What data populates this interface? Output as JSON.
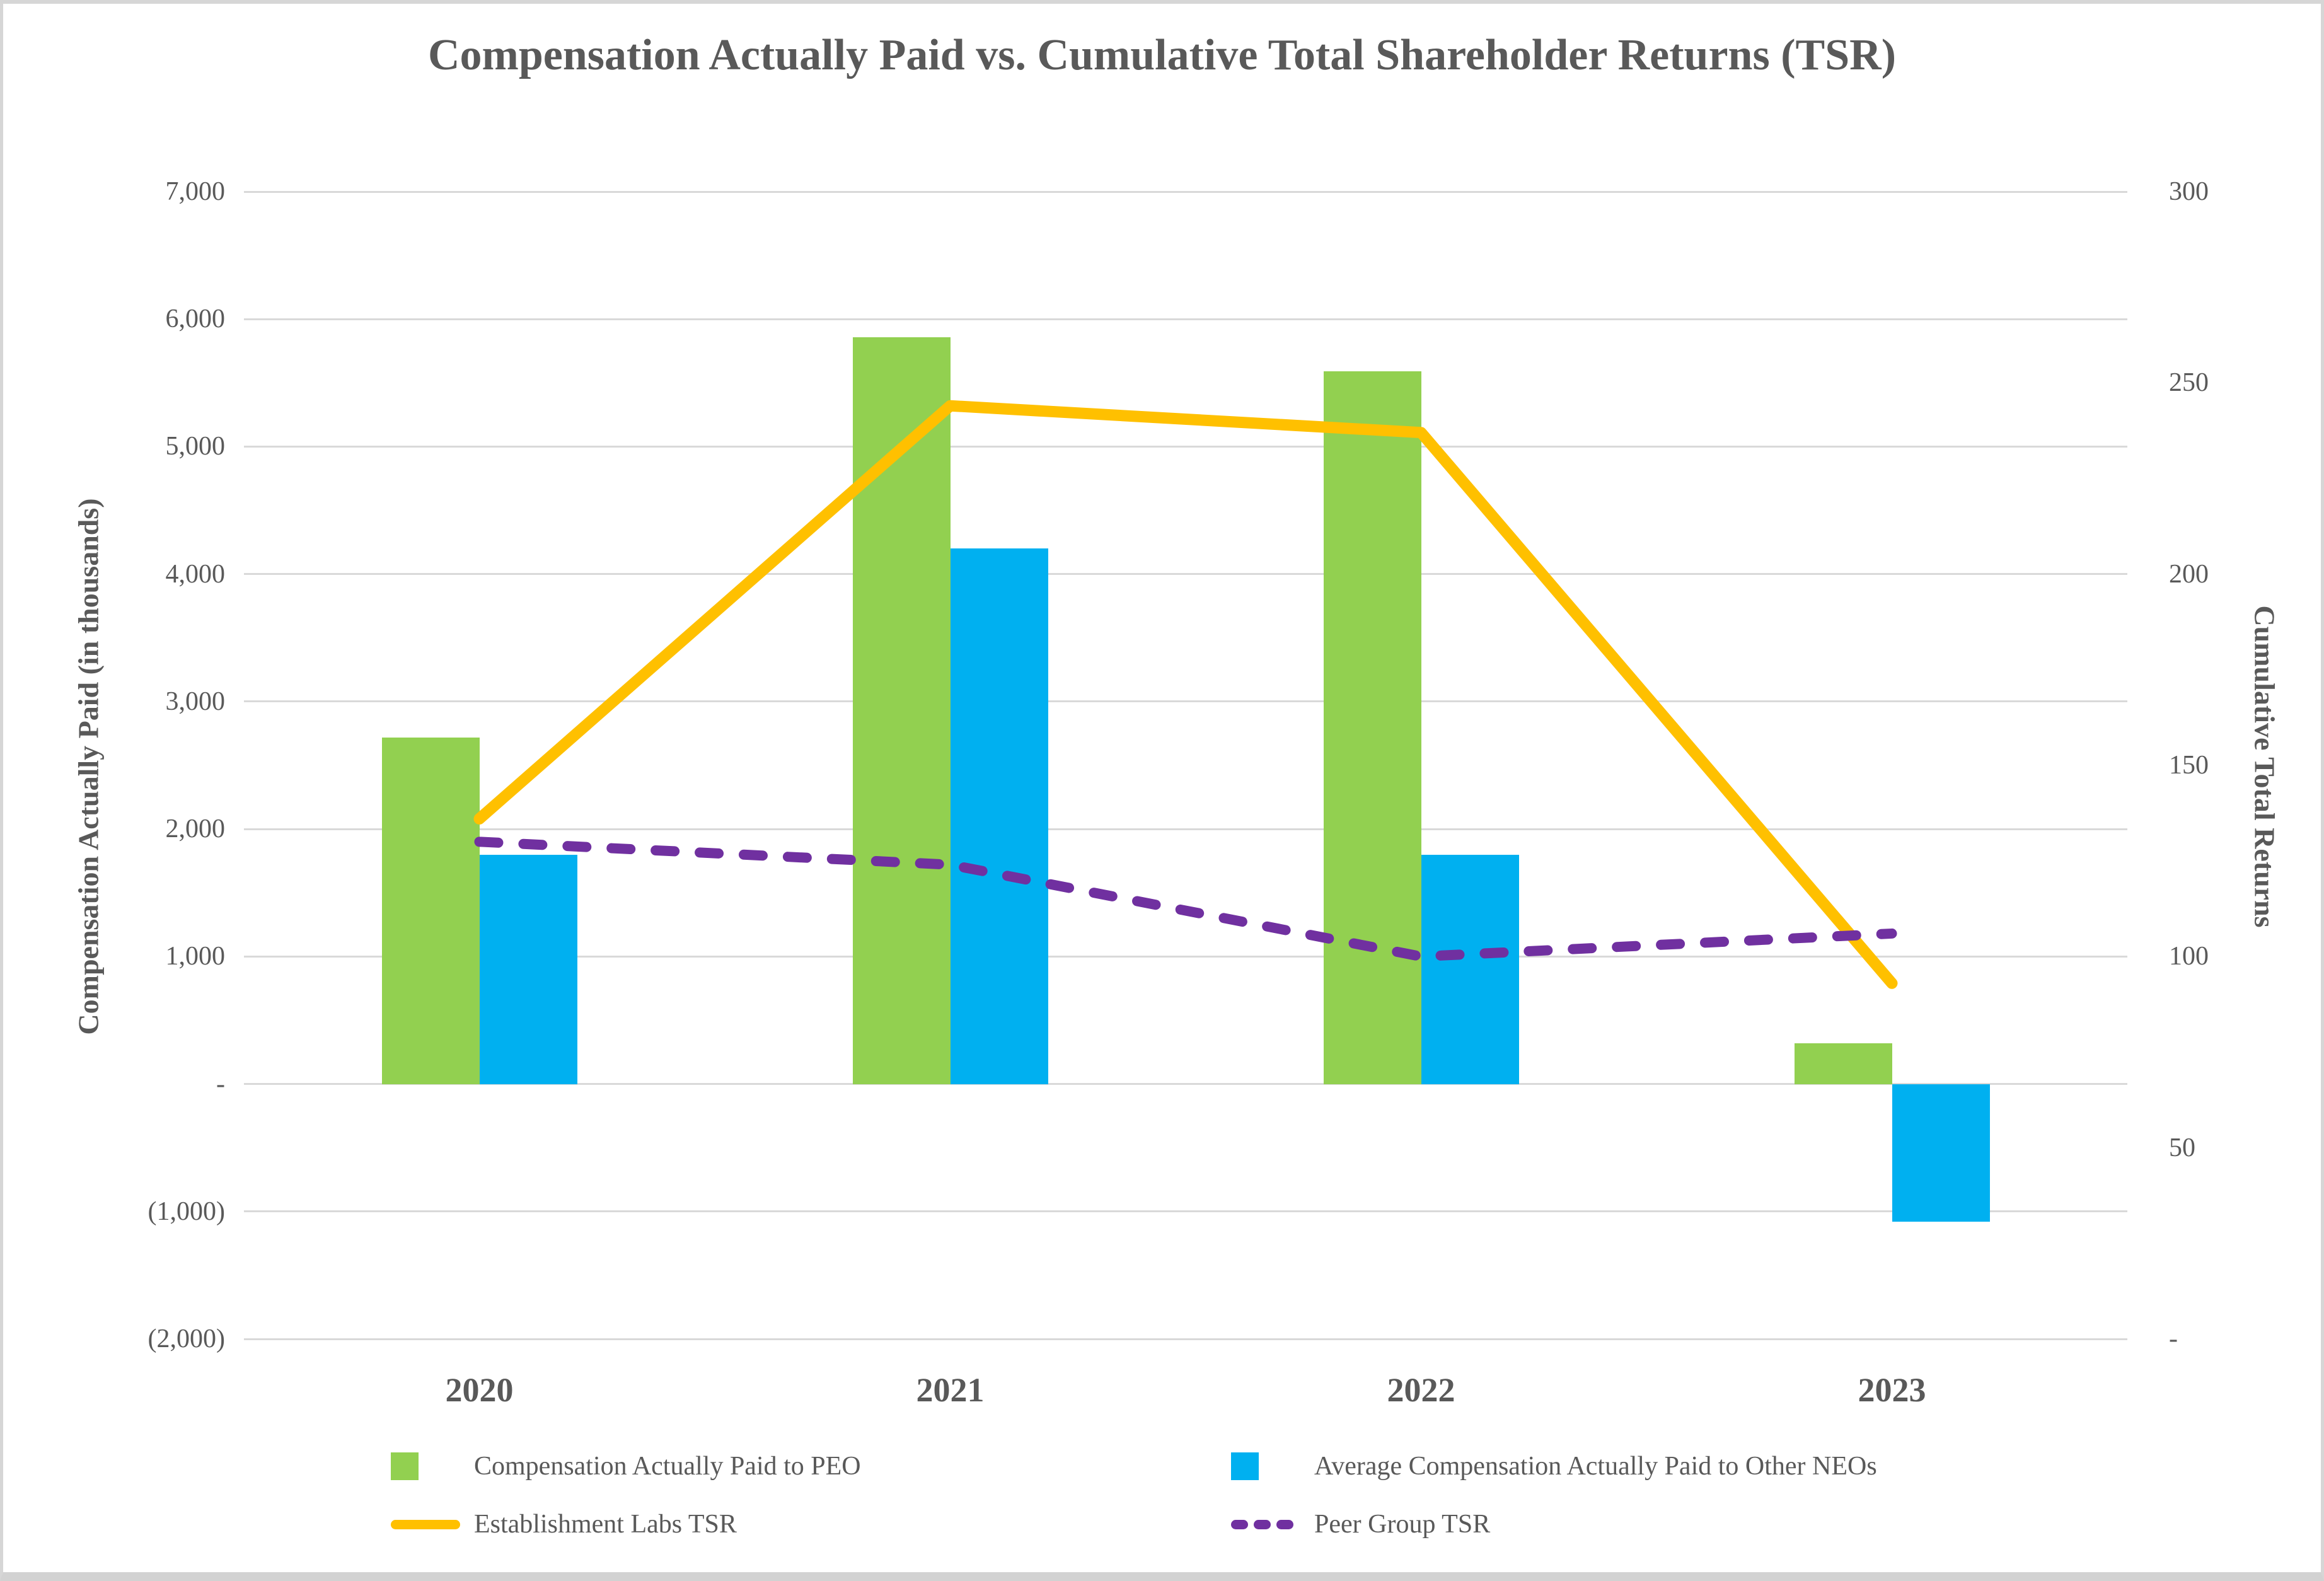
{
  "chart_data": {
    "type": "combo-bar-line",
    "title": "Compensation Actually Paid vs. Cumulative Total Shareholder Returns (TSR)",
    "categories": [
      "2020",
      "2021",
      "2022",
      "2023"
    ],
    "series": [
      {
        "name": "Compensation Actually Paid to PEO",
        "type": "bar",
        "axis": "left",
        "color": "#92D050",
        "values": [
          2720,
          5860,
          5590,
          320
        ]
      },
      {
        "name": "Average Compensation Actually Paid to Other NEOs",
        "type": "bar",
        "axis": "left",
        "color": "#00B0F0",
        "values": [
          1800,
          4200,
          1800,
          -1080
        ]
      },
      {
        "name": "Establishment Labs TSR",
        "type": "line",
        "line_style": "solid",
        "axis": "right",
        "color": "#FFC000",
        "values": [
          136,
          244,
          237,
          93
        ]
      },
      {
        "name": "Peer Group TSR",
        "type": "line",
        "line_style": "dashed",
        "axis": "right",
        "color": "#7030A0",
        "values": [
          130,
          124,
          100,
          106
        ]
      }
    ],
    "left_axis": {
      "title": "Compensation Actually Paid (in thousands)",
      "min": -2000,
      "max": 7000,
      "ticks": [
        {
          "value": 7000,
          "label": "7,000"
        },
        {
          "value": 6000,
          "label": "6,000"
        },
        {
          "value": 5000,
          "label": "5,000"
        },
        {
          "value": 4000,
          "label": "4,000"
        },
        {
          "value": 3000,
          "label": "3,000"
        },
        {
          "value": 2000,
          "label": "2,000"
        },
        {
          "value": 1000,
          "label": "1,000"
        },
        {
          "value": 0,
          "label": "-"
        },
        {
          "value": -1000,
          "label": "(1,000)"
        },
        {
          "value": -2000,
          "label": "(2,000)"
        }
      ]
    },
    "right_axis": {
      "title": "Cumulative Total Returns",
      "min": 0,
      "max": 300,
      "ticks": [
        {
          "value": 300,
          "label": "300"
        },
        {
          "value": 250,
          "label": "250"
        },
        {
          "value": 200,
          "label": "200"
        },
        {
          "value": 150,
          "label": "150"
        },
        {
          "value": 100,
          "label": "100"
        },
        {
          "value": 50,
          "label": "50"
        },
        {
          "value": 0,
          "label": "-"
        }
      ]
    },
    "legend_position": "bottom",
    "grid": true,
    "styles": {
      "text_color": "#595959",
      "gridline_color": "#D9D9D9",
      "background": "#FFFFFF",
      "frame_color": "#D6D6D6"
    }
  }
}
